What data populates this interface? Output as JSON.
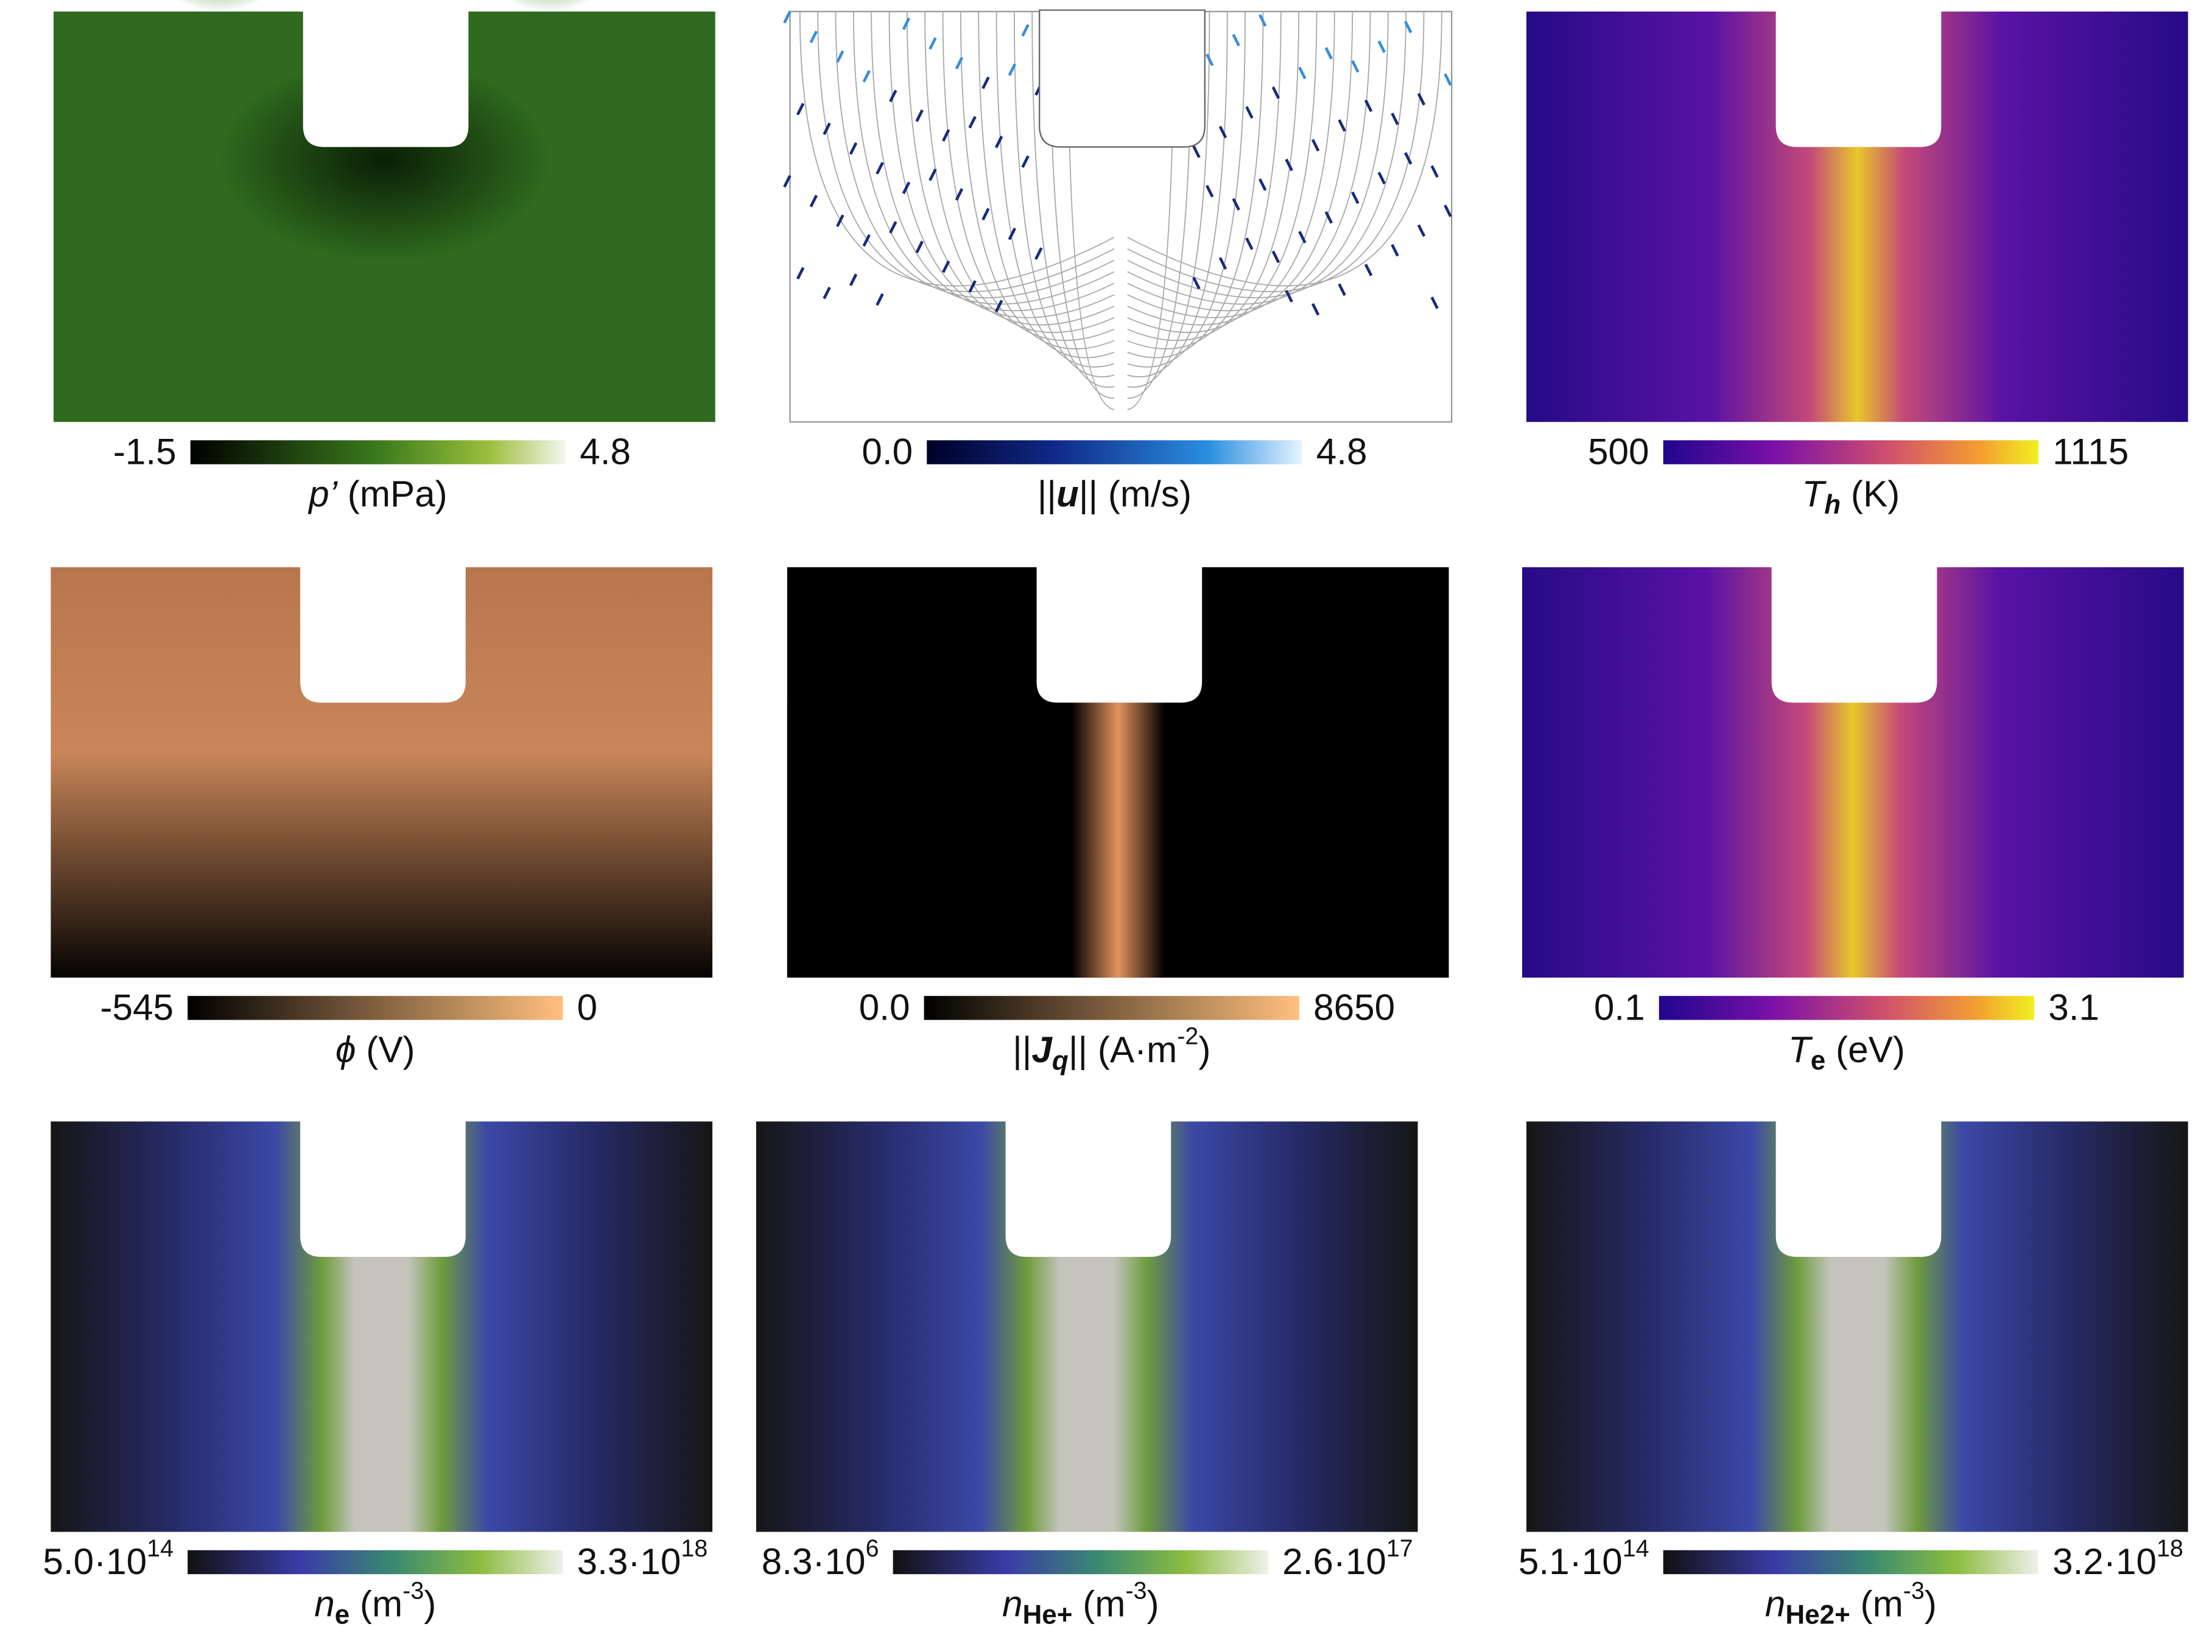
{
  "panels": [
    {
      "min": [
        "-1.5"
      ],
      "max": [
        "4.8"
      ],
      "label": [
        "p’",
        " (mPa)"
      ]
    },
    {
      "min": [
        "0.0"
      ],
      "max": [
        "4.8"
      ],
      "label": [
        "||",
        "u",
        "|| (m/s)"
      ]
    },
    {
      "min": [
        "500"
      ],
      "max": [
        "1115"
      ],
      "label": [
        "T",
        "h",
        " (K)"
      ]
    },
    {
      "min": [
        "-545"
      ],
      "max": [
        "0"
      ],
      "label": [
        "ϕ",
        " (V)"
      ]
    },
    {
      "min": [
        "0.0"
      ],
      "max": [
        "8650"
      ],
      "label": [
        "||",
        "J",
        "q",
        "|| (A·m",
        "-2",
        ")"
      ]
    },
    {
      "min": [
        "0.1"
      ],
      "max": [
        "3.1"
      ],
      "label": [
        "T",
        "e",
        " (eV)"
      ]
    },
    {
      "min": [
        "5.0·10",
        "14"
      ],
      "max": [
        "3.3·10",
        "18"
      ],
      "label": [
        "n",
        "e",
        " (m",
        "-3",
        ")"
      ]
    },
    {
      "min": [
        "8.3·10",
        "6"
      ],
      "max": [
        "2.6·10",
        "17"
      ],
      "label": [
        "n",
        "He+",
        " (m",
        "-3",
        ")"
      ]
    },
    {
      "min": [
        "5.1·10",
        "14"
      ],
      "max": [
        "3.2·10",
        "18"
      ],
      "label": [
        "n",
        "He2+",
        " (m",
        "-3",
        ")"
      ]
    }
  ]
}
